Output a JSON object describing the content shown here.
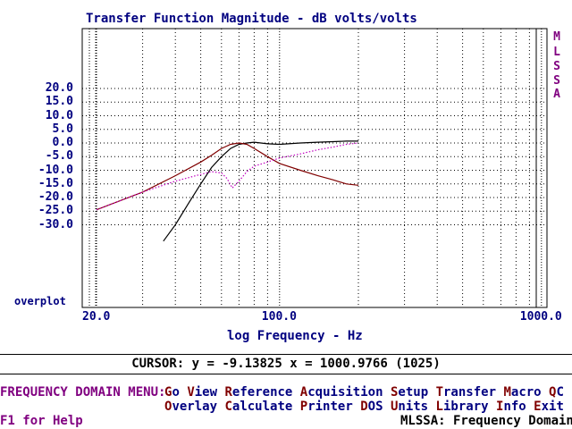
{
  "screen": {
    "title": "Transfer Function Magnitude - dB volts/volts",
    "side_label": [
      "M",
      "L",
      "S",
      "S",
      "A"
    ],
    "overplot_label": "overplot",
    "x_axis_label": "log Frequency - Hz",
    "cursor_readout": "CURSOR: y = -9.13825 x = 1000.9766 (1025)",
    "help_text": "F1 for Help",
    "mode_text": "MLSSA: Frequency Domain"
  },
  "menu": {
    "title": "FREQUENCY DOMAIN MENU:",
    "row1": [
      {
        "hotkey": "G",
        "rest": "o"
      },
      {
        "hotkey": "V",
        "rest": "iew"
      },
      {
        "hotkey": "R",
        "rest": "eference"
      },
      {
        "hotkey": "A",
        "rest": "cquisition"
      },
      {
        "hotkey": "S",
        "rest": "etup"
      },
      {
        "hotkey": "T",
        "rest": "ransfer"
      },
      {
        "hotkey": "M",
        "rest": "acro"
      },
      {
        "hotkey": "Q",
        "rest": "C"
      }
    ],
    "row2": [
      {
        "hotkey": "O",
        "rest": "verlay"
      },
      {
        "hotkey": "C",
        "rest": "alculate"
      },
      {
        "hotkey": "P",
        "rest": "rinter"
      },
      {
        "hotkey": "D",
        "rest": "OS"
      },
      {
        "hotkey": "U",
        "rest": "nits"
      },
      {
        "hotkey": "L",
        "rest": "ibrary"
      },
      {
        "hotkey": "I",
        "rest": "nfo"
      },
      {
        "hotkey": "E",
        "rest": "xit"
      }
    ]
  },
  "colors": {
    "axis_text": "#000080",
    "menu_title": "#800080",
    "hotkey": "#800000",
    "trace_black": "#000000",
    "trace_red": "#800000",
    "trace_magenta": "#c000c0"
  },
  "chart_data": {
    "type": "line",
    "title": "Transfer Function Magnitude - dB volts/volts",
    "xlabel": "log Frequency - Hz",
    "ylabel": "",
    "x_scale": "log",
    "xlim": [
      20,
      1000
    ],
    "ylim": [
      -35,
      25
    ],
    "yticks": [
      "20.0",
      "15.0",
      "10.0",
      "5.0",
      "0.0",
      "-5.0",
      "-10.0",
      "-15.0",
      "-20.0",
      "-25.0",
      "-30.0"
    ],
    "ytick_values": [
      20,
      15,
      10,
      5,
      0,
      -5,
      -10,
      -15,
      -20,
      -25,
      -30
    ],
    "xticks": [
      "20.0",
      "100.0",
      "1000.0"
    ],
    "xtick_values": [
      20,
      100,
      1000
    ],
    "grid": true,
    "series": [
      {
        "color": "#000000",
        "style": "solid",
        "x": [
          36,
          40,
          45,
          50,
          55,
          60,
          65,
          70,
          75,
          80,
          90,
          100,
          120,
          140,
          160,
          180,
          200
        ],
        "y": [
          -36,
          -30,
          -22,
          -15,
          -9,
          -5,
          -2,
          -0.5,
          0,
          0.3,
          -0.3,
          -0.5,
          0,
          0.3,
          0.5,
          0.7,
          0.7
        ]
      },
      {
        "color": "#800000",
        "style": "solid",
        "x": [
          20,
          30,
          40,
          50,
          55,
          60,
          65,
          70,
          75,
          80,
          90,
          100,
          120,
          140,
          160,
          180,
          200
        ],
        "y": [
          -24.5,
          -18,
          -12,
          -7,
          -4.5,
          -2,
          -0.5,
          0,
          -0.5,
          -2,
          -5,
          -7.5,
          -10,
          -12,
          -13.5,
          -15,
          -15.5
        ]
      },
      {
        "color": "#c000c0",
        "style": "dotted",
        "x": [
          20,
          30,
          40,
          50,
          55,
          60,
          63,
          66,
          70,
          75,
          80,
          90,
          100,
          120,
          140,
          160,
          180,
          200
        ],
        "y": [
          -24.5,
          -18,
          -14,
          -11.5,
          -10.5,
          -11,
          -13,
          -16.5,
          -14,
          -10.5,
          -8.5,
          -7,
          -5.5,
          -4,
          -2.5,
          -1.5,
          -0.5,
          0
        ]
      }
    ]
  }
}
